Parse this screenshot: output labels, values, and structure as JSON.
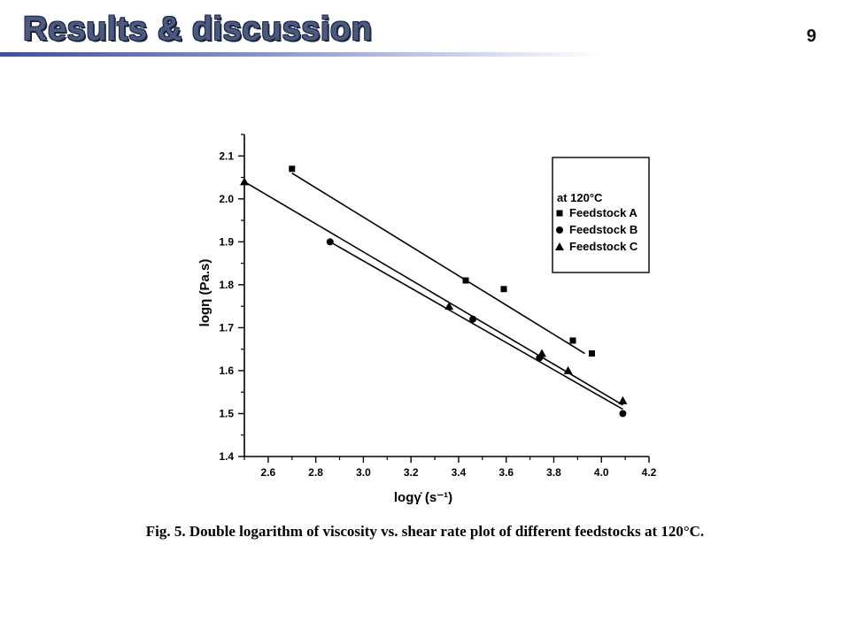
{
  "slide": {
    "title": "Results & discussion",
    "page_number": "9",
    "caption": "Fig. 5. Double logarithm of viscosity vs. shear rate plot of different feedstocks at 120°C."
  },
  "colors": {
    "title": "#4a5a80",
    "rule": "#3d4fa3",
    "ink": "#000000"
  },
  "chart_data": {
    "type": "scatter",
    "xlabel": "logγ̇ (s⁻¹)",
    "ylabel": "logη (Pa.s)",
    "xlim": [
      2.5,
      4.2
    ],
    "ylim": [
      1.4,
      2.15
    ],
    "xticks": [
      2.6,
      2.8,
      3.0,
      3.2,
      3.4,
      3.6,
      3.8,
      4.0,
      4.2
    ],
    "yticks": [
      1.4,
      1.5,
      1.6,
      1.7,
      1.8,
      1.9,
      2.0,
      2.1
    ],
    "legend": {
      "title": "at 120°C",
      "placement": "top-right"
    },
    "series": [
      {
        "name": "Feedstock A",
        "marker": "square",
        "x": [
          2.7,
          3.43,
          3.59,
          3.88,
          3.96
        ],
        "y": [
          2.07,
          1.81,
          1.79,
          1.67,
          1.64
        ],
        "fit": {
          "x": [
            2.7,
            3.93
          ],
          "y": [
            2.06,
            1.64
          ]
        }
      },
      {
        "name": "Feedstock B",
        "marker": "circle",
        "x": [
          2.86,
          3.46,
          3.74,
          4.09
        ],
        "y": [
          1.9,
          1.72,
          1.63,
          1.5
        ],
        "fit": {
          "x": [
            2.86,
            4.09
          ],
          "y": [
            1.9,
            1.51
          ]
        }
      },
      {
        "name": "Feedstock C",
        "marker": "triangle",
        "x": [
          2.5,
          3.36,
          3.75,
          3.86,
          4.09
        ],
        "y": [
          2.04,
          1.75,
          1.64,
          1.6,
          1.53
        ],
        "fit": {
          "x": [
            2.5,
            4.09
          ],
          "y": [
            2.04,
            1.52
          ]
        }
      }
    ]
  }
}
